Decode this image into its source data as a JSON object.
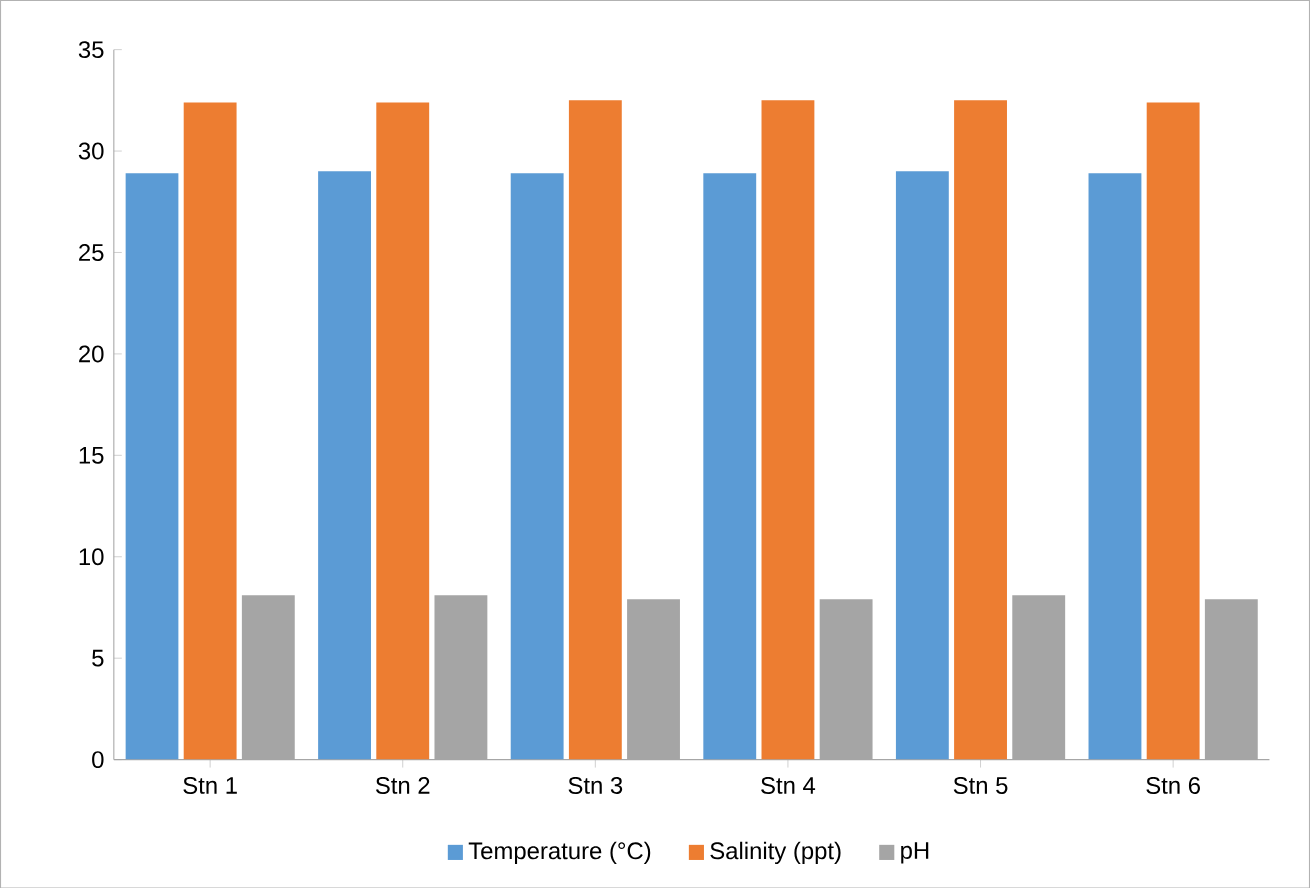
{
  "chart_data": {
    "type": "bar",
    "categories": [
      "Stn 1",
      "Stn 2",
      "Stn 3",
      "Stn 4",
      "Stn 5",
      "Stn 6"
    ],
    "series": [
      {
        "name": "Temperature (°C)",
        "color": "#5b9bd5",
        "values": [
          28.9,
          29.0,
          28.9,
          28.9,
          29.0,
          28.9
        ]
      },
      {
        "name": "Salinity (ppt)",
        "color": "#ed7d31",
        "values": [
          32.4,
          32.4,
          32.5,
          32.5,
          32.5,
          32.4
        ]
      },
      {
        "name": "pH",
        "color": "#a5a5a5",
        "values": [
          8.1,
          8.1,
          7.9,
          7.9,
          8.1,
          7.9
        ]
      }
    ],
    "ylim": [
      0,
      35
    ],
    "yticks": [
      0,
      5,
      10,
      15,
      20,
      25,
      30,
      35
    ],
    "grid": false,
    "legend": "bottom"
  }
}
